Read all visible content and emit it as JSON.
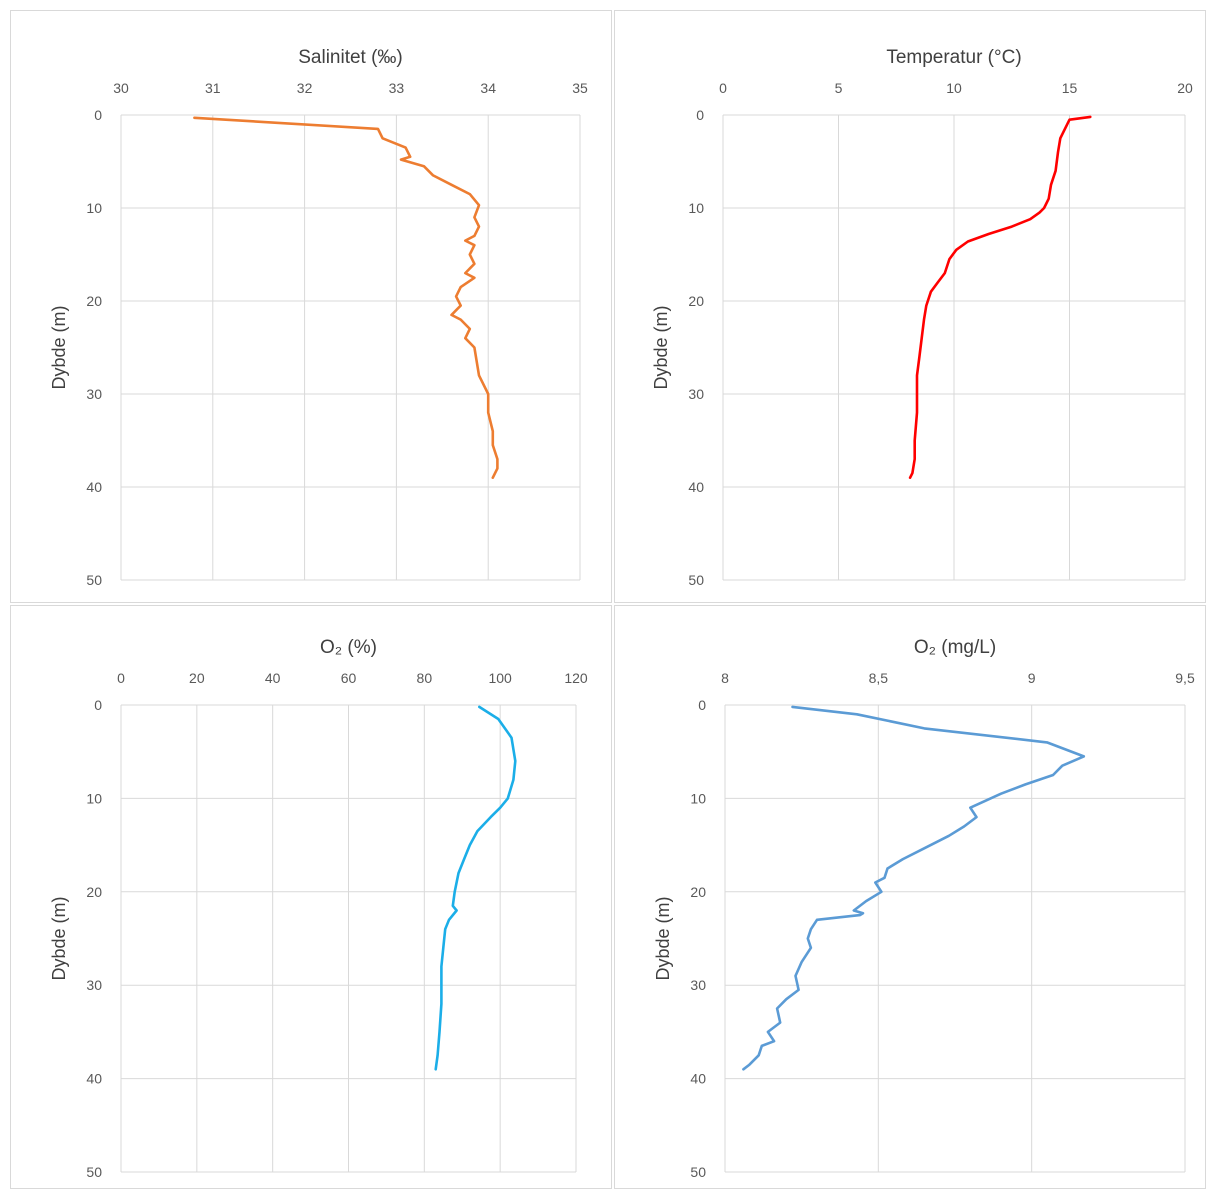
{
  "chart_data": [
    {
      "type": "line",
      "title": "Salinitet (‰)",
      "xlabel": "",
      "ylabel": "Dybde (m)",
      "xlim": [
        30,
        35
      ],
      "xticks": [
        "30",
        "31",
        "32",
        "33",
        "34",
        "35"
      ],
      "ylim": [
        0,
        50
      ],
      "yticks": [
        "0",
        "10",
        "20",
        "30",
        "40",
        "50"
      ],
      "y_inverted": true,
      "x_axis_position": "top",
      "grid": true,
      "color": "#ED7D31",
      "series": [
        {
          "x": [
            30.8,
            32.8,
            32.85,
            33.1,
            33.15,
            33.05,
            33.3,
            33.4,
            33.6,
            33.8,
            33.9,
            33.85,
            33.9,
            33.85,
            33.75,
            33.85,
            33.8,
            33.85,
            33.75,
            33.85,
            33.7,
            33.65,
            33.7,
            33.6,
            33.7,
            33.8,
            33.75,
            33.85,
            33.9,
            34.0,
            34.0,
            34.05,
            34.05,
            34.1,
            34.1,
            34.05
          ],
          "y": [
            0.3,
            1.5,
            2.5,
            3.5,
            4.5,
            4.8,
            5.5,
            6.5,
            7.5,
            8.5,
            9.7,
            11,
            12,
            13,
            13.5,
            14,
            15,
            16,
            17,
            17.5,
            18.5,
            19.5,
            20.5,
            21.5,
            22,
            23,
            24,
            25,
            28,
            30,
            32,
            34,
            35.5,
            37,
            38,
            39
          ]
        }
      ]
    },
    {
      "type": "line",
      "title": "Temperatur (°C)",
      "xlabel": "",
      "ylabel": "Dybde (m)",
      "xlim": [
        0,
        20
      ],
      "xticks": [
        "0",
        "5",
        "10",
        "15",
        "20"
      ],
      "ylim": [
        0,
        50
      ],
      "yticks": [
        "0",
        "10",
        "20",
        "30",
        "40",
        "50"
      ],
      "y_inverted": true,
      "x_axis_position": "top",
      "grid": true,
      "color": "#FF0000",
      "series": [
        {
          "x": [
            15.9,
            15,
            14.9,
            14.6,
            14.5,
            14.4,
            14.2,
            14.1,
            13.9,
            13.7,
            13.3,
            12.5,
            11.5,
            10.6,
            10.1,
            9.8,
            9.6,
            9.3,
            9.0,
            8.8,
            8.7,
            8.6,
            8.5,
            8.4,
            8.4,
            8.3,
            8.3,
            8.2,
            8.1
          ],
          "y": [
            0.2,
            0.5,
            1,
            2.5,
            4,
            6,
            7.5,
            9,
            10,
            10.5,
            11.2,
            12,
            12.8,
            13.6,
            14.5,
            15.5,
            17,
            18,
            19,
            20.5,
            22,
            24,
            26,
            28,
            32,
            35,
            37,
            38.5,
            39
          ]
        }
      ]
    },
    {
      "type": "line",
      "title": "O₂ (%)",
      "xlabel": "",
      "ylabel": "Dybde (m)",
      "xlim": [
        0,
        120
      ],
      "xticks": [
        "0",
        "20",
        "40",
        "60",
        "80",
        "100",
        "120"
      ],
      "ylim": [
        0,
        50
      ],
      "yticks": [
        "0",
        "10",
        "20",
        "30",
        "40",
        "50"
      ],
      "y_inverted": true,
      "x_axis_position": "top",
      "grid": true,
      "color": "#1BAEE8",
      "series": [
        {
          "x": [
            94.5,
            99.5,
            103,
            104,
            103.5,
            102,
            100,
            97.5,
            94,
            92,
            90.5,
            89,
            88,
            87.5,
            88.5,
            86.5,
            85.5,
            85,
            84.5,
            84.5,
            84.5,
            84,
            83.5,
            83
          ],
          "y": [
            0.2,
            1.5,
            3.5,
            6,
            8,
            10,
            11,
            12,
            13.5,
            15,
            16.5,
            18,
            20,
            21.5,
            22,
            23,
            24,
            26,
            28,
            30,
            32,
            35,
            37.5,
            39
          ]
        }
      ]
    },
    {
      "type": "line",
      "title": "O₂ (mg/L)",
      "xlabel": "",
      "ylabel": "Dybde (m)",
      "xlim": [
        8,
        9.5
      ],
      "xticks": [
        "8",
        "8,5",
        "9",
        "9,5"
      ],
      "ylim": [
        0,
        50
      ],
      "yticks": [
        "0",
        "10",
        "20",
        "30",
        "40",
        "50"
      ],
      "y_inverted": true,
      "x_axis_position": "top",
      "grid": true,
      "color": "#5B9BD5",
      "series": [
        {
          "x": [
            8.22,
            8.43,
            8.65,
            9.05,
            9.17,
            9.1,
            9.07,
            8.98,
            8.9,
            8.8,
            8.82,
            8.78,
            8.73,
            8.64,
            8.58,
            8.53,
            8.52,
            8.49,
            8.51,
            8.46,
            8.42,
            8.45,
            8.44,
            8.3,
            8.28,
            8.27,
            8.28,
            8.25,
            8.23,
            8.24,
            8.2,
            8.17,
            8.18,
            8.14,
            8.16,
            8.12,
            8.11,
            8.08,
            8.06
          ],
          "y": [
            0.2,
            1,
            2.5,
            4,
            5.5,
            6.5,
            7.5,
            8.5,
            9.5,
            11,
            12,
            13,
            14,
            15.5,
            16.5,
            17.5,
            18.5,
            19,
            20,
            21,
            22,
            22.3,
            22.5,
            23,
            24,
            25,
            26,
            27.5,
            29,
            30.5,
            31.5,
            32.5,
            34,
            35,
            36,
            36.5,
            37.5,
            38.5,
            39
          ]
        }
      ]
    }
  ]
}
